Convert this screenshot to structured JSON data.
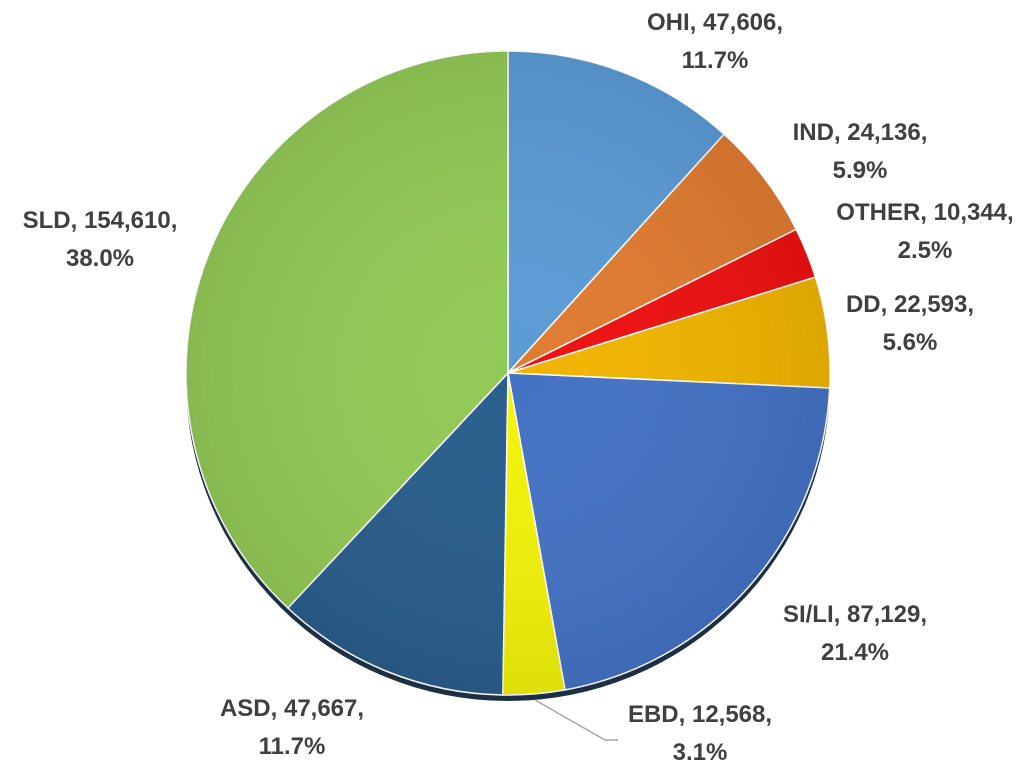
{
  "chart_data": {
    "type": "pie",
    "categories": [
      "OHI",
      "IND",
      "OTHER",
      "DD",
      "SI/LI",
      "EBD",
      "ASD",
      "SLD"
    ],
    "values": [
      47606,
      24136,
      10344,
      22593,
      87129,
      12568,
      47667,
      154610
    ],
    "value_labels": [
      "47,606",
      "24,136",
      "10,344",
      "22,593",
      "87,129",
      "12,568",
      "47,667",
      "154,610"
    ],
    "percent_labels": [
      "11.7%",
      "5.9%",
      "2.5%",
      "5.6%",
      "21.4%",
      "3.1%",
      "11.7%",
      "38.0%"
    ],
    "colors": [
      "#5b9bd5",
      "#e07b31",
      "#ee1111",
      "#f0b400",
      "#4472c4",
      "#f2f20a",
      "#2a5e8c",
      "#92c956"
    ]
  }
}
